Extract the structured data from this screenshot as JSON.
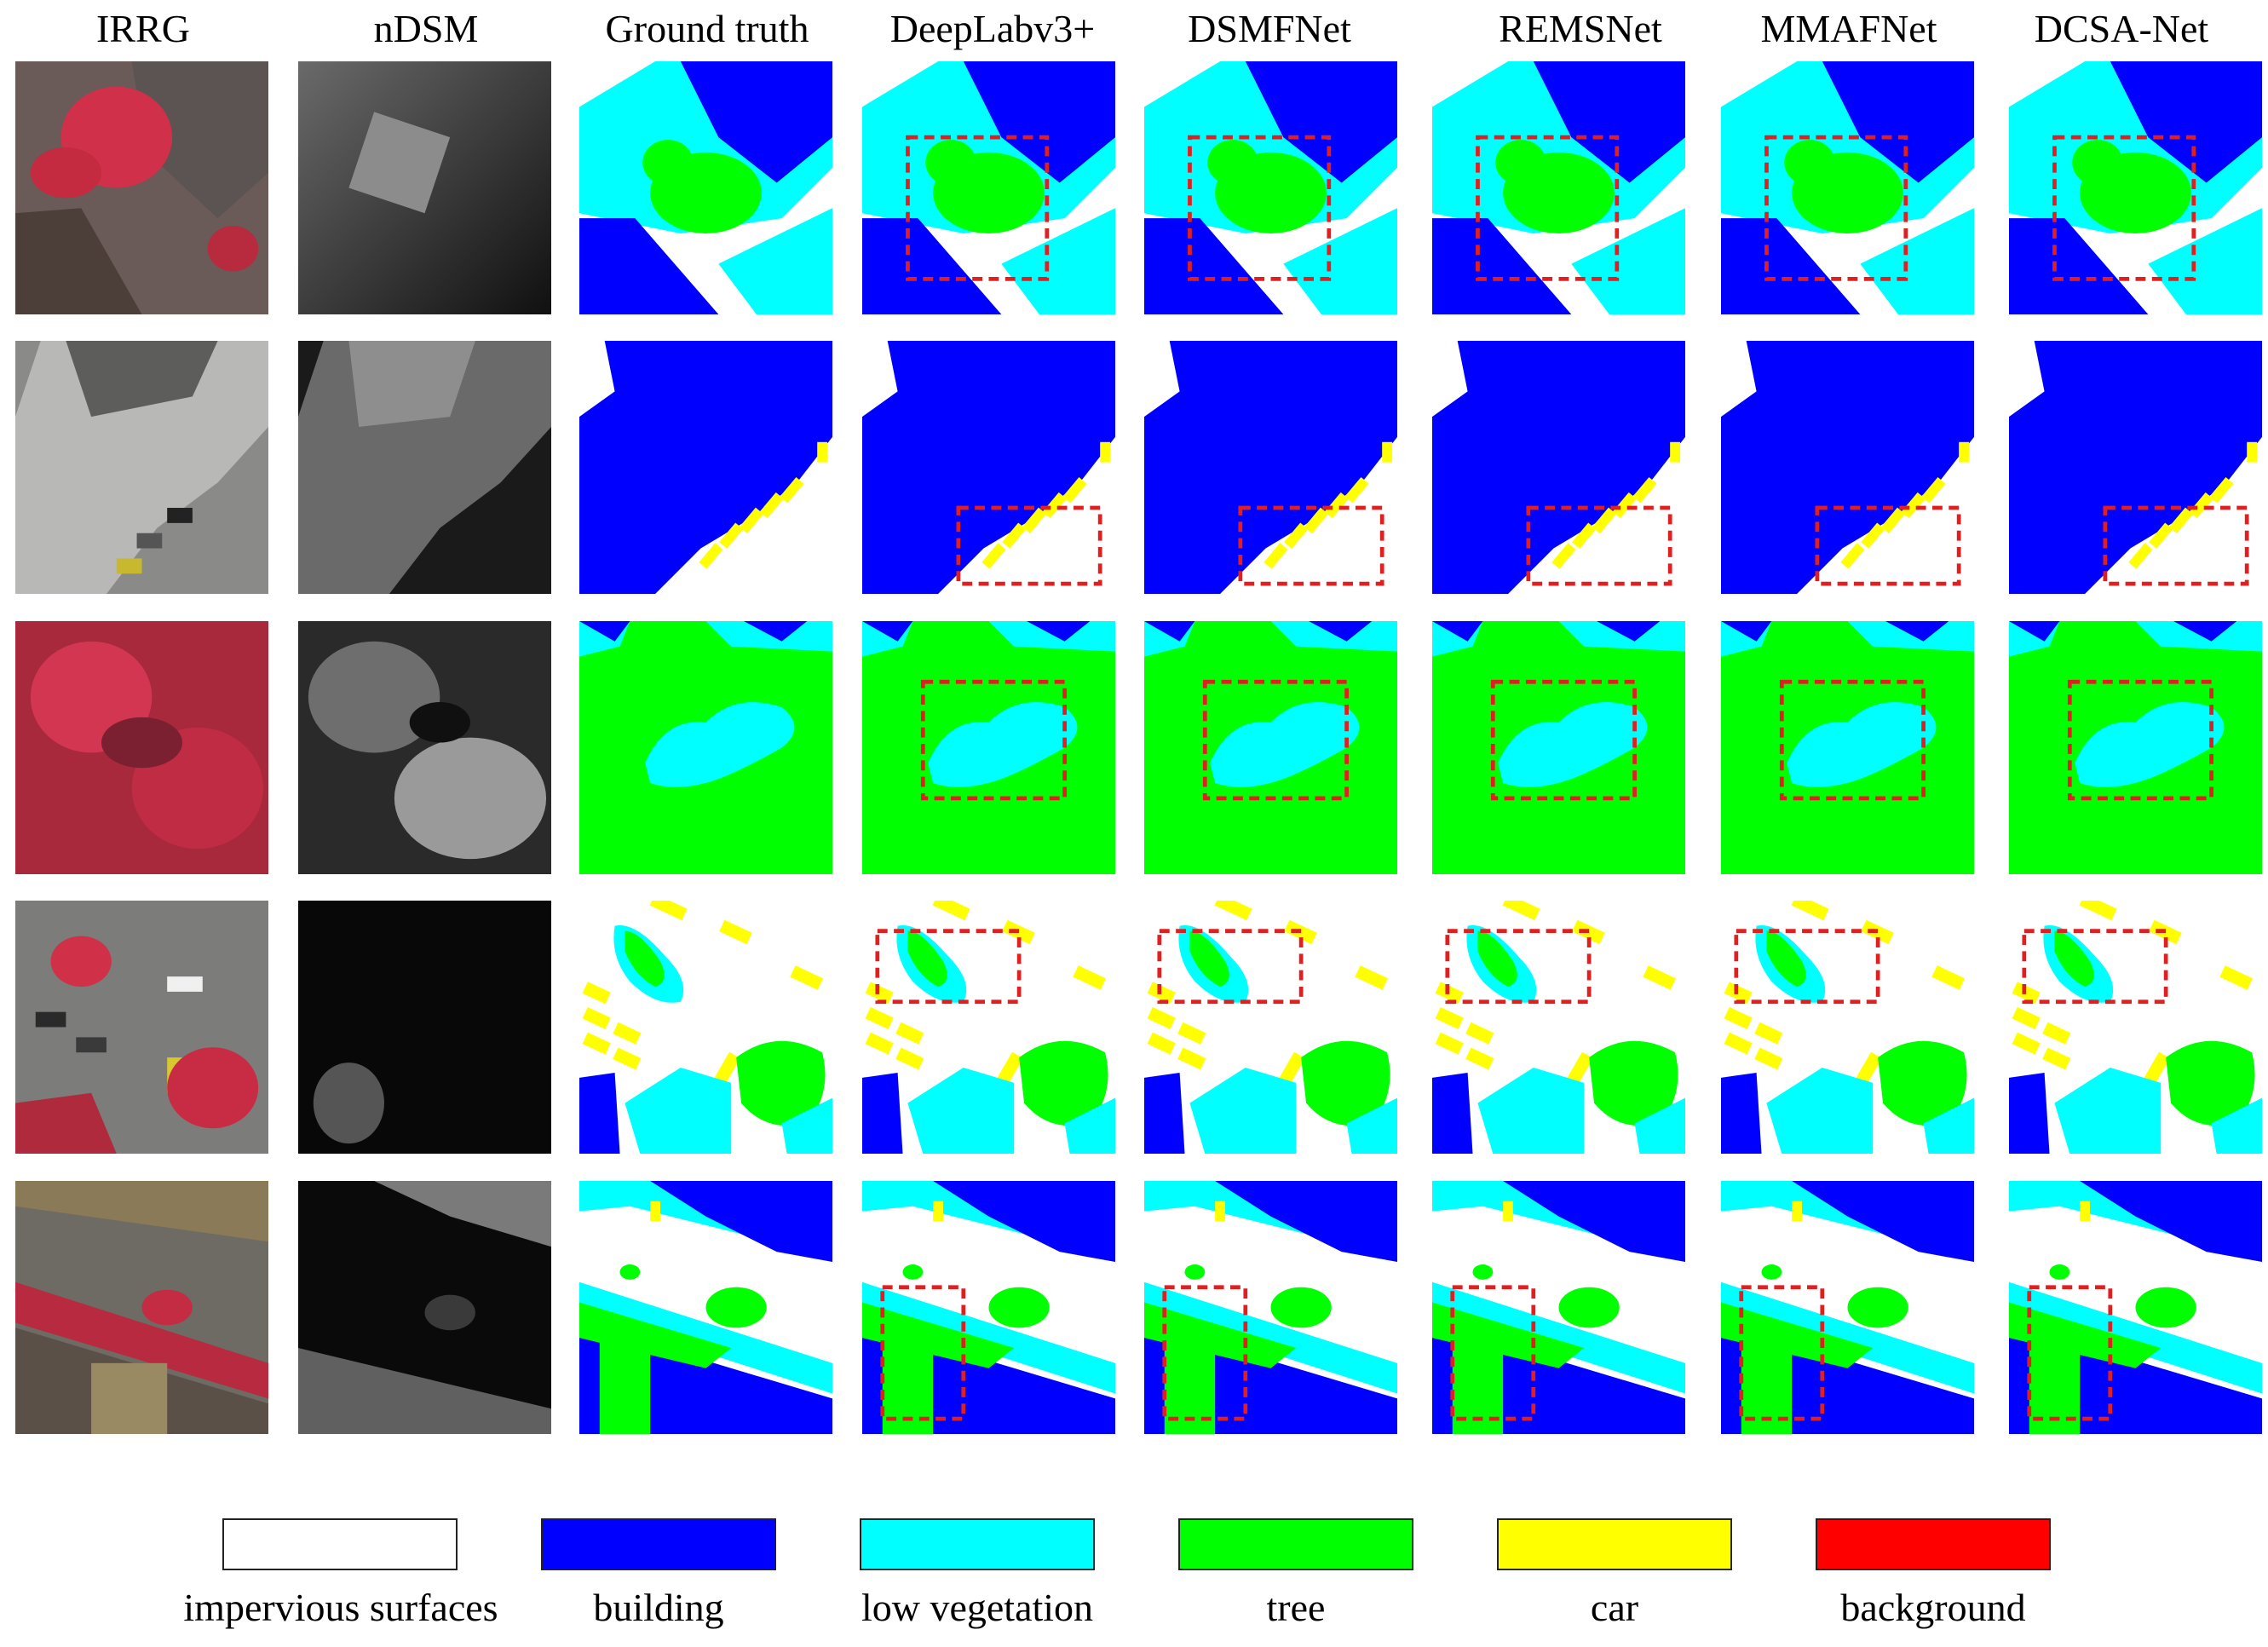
{
  "figure": {
    "columns": [
      {
        "id": "irrg",
        "label": "IRRG"
      },
      {
        "id": "ndsm",
        "label": "nDSM"
      },
      {
        "id": "gt",
        "label": "Ground truth"
      },
      {
        "id": "deeplab",
        "label": "DeepLabv3+"
      },
      {
        "id": "dsmfnet",
        "label": "DSMFNet"
      },
      {
        "id": "remsnet",
        "label": "REMSNet"
      },
      {
        "id": "mmafnet",
        "label": "MMAFNet"
      },
      {
        "id": "dcsanet",
        "label": "DCSA-Net"
      }
    ],
    "highlight_color": "#e02020"
  },
  "legend": {
    "items": [
      {
        "label": "impervious surfaces",
        "color": "#ffffff"
      },
      {
        "label": "building",
        "color": "#0000ff"
      },
      {
        "label": "low vegetation",
        "color": "#00ffff"
      },
      {
        "label": "tree",
        "color": "#00ff00"
      },
      {
        "label": "car",
        "color": "#ffff00"
      },
      {
        "label": "background",
        "color": "#ff0000"
      }
    ]
  }
}
